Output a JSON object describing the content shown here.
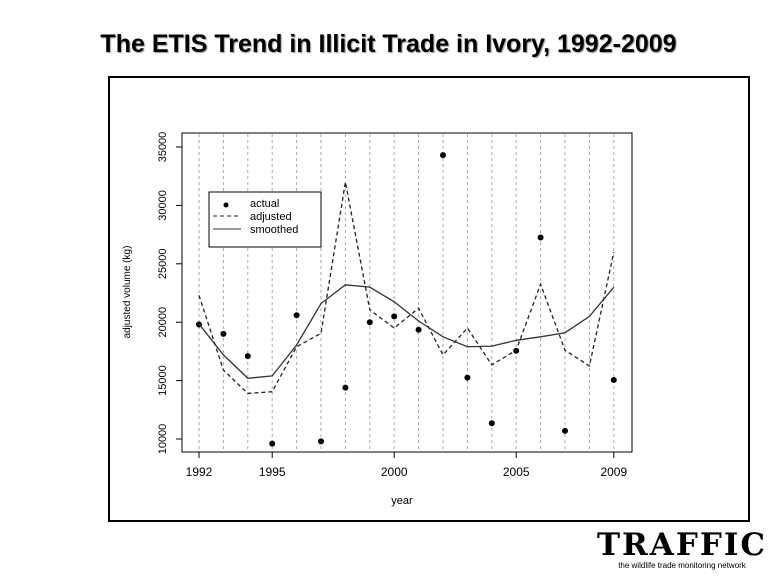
{
  "title": "The ETIS Trend in Illicit Trade in Ivory, 1992-2009",
  "logo": {
    "word": "TRAFFIC",
    "tagline": "the wildlife trade monitoring network"
  },
  "chart_data": {
    "type": "line",
    "title": "",
    "xlabel": "year",
    "ylabel": "adjusted volume (kg)",
    "xlim": [
      1991.3,
      2010
    ],
    "ylim": [
      9000,
      36000
    ],
    "x_ticks": [
      1992,
      1995,
      2000,
      2005,
      2009
    ],
    "y_ticks": [
      10000,
      15000,
      20000,
      25000,
      30000,
      35000
    ],
    "grid": "vertical dashed lines at each year",
    "legend": {
      "placement": "top-left",
      "entries": [
        "actual",
        "adjusted",
        "smoothed"
      ]
    },
    "series": [
      {
        "name": "actual",
        "style": "points",
        "x": [
          1992,
          1993,
          1994,
          1995,
          1996,
          1997,
          1998,
          1999,
          2000,
          2001,
          2002,
          2003,
          2004,
          2005,
          2006,
          2007,
          2009
        ],
        "y": [
          19800,
          19000,
          17100,
          9600,
          20600,
          9800,
          14400,
          20000,
          20500,
          19350,
          34300,
          15250,
          11350,
          17550,
          27250,
          10700,
          15050
        ]
      },
      {
        "name": "adjusted",
        "style": "dashed",
        "x": [
          1992,
          1993,
          1994,
          1995,
          1996,
          1997,
          1998,
          1999,
          2000,
          2001,
          2002,
          2003,
          2004,
          2005,
          2006,
          2007,
          2008,
          2009
        ],
        "y": [
          22300,
          15900,
          13900,
          14050,
          17900,
          19050,
          32000,
          21050,
          19500,
          21200,
          17200,
          19500,
          16350,
          17600,
          23250,
          17600,
          16250,
          26000
        ]
      },
      {
        "name": "smoothed",
        "style": "solid",
        "x": [
          1992,
          1993,
          1994,
          1995,
          1996,
          1997,
          1998,
          1999,
          2000,
          2001,
          2002,
          2003,
          2004,
          2005,
          2006,
          2007,
          2008,
          2009
        ],
        "y": [
          19850,
          17200,
          15200,
          15400,
          18050,
          21600,
          23200,
          23000,
          21750,
          20100,
          18750,
          17900,
          17950,
          18450,
          18750,
          19100,
          20500,
          23000
        ]
      }
    ]
  }
}
